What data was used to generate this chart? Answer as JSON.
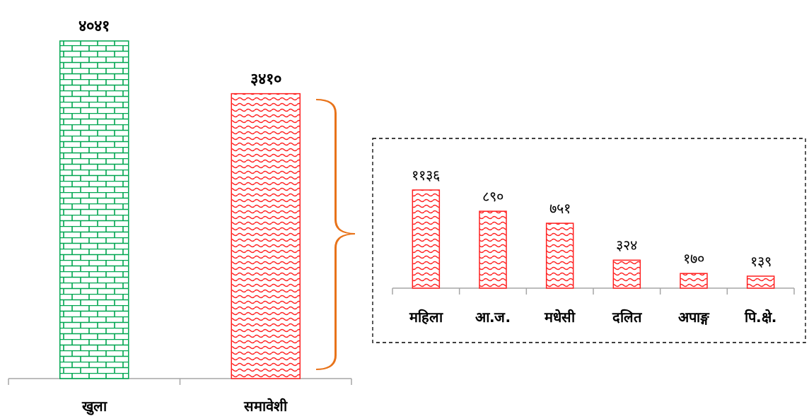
{
  "chart_data": [
    {
      "type": "bar",
      "categories": [
        "खुला",
        "समावेशी"
      ],
      "values": [
        4041,
        3410
      ],
      "value_labels": [
        "४०४१",
        "३४१०"
      ],
      "colors": [
        "#00a650",
        "#ff2020"
      ]
    },
    {
      "type": "bar",
      "categories": [
        "महिला",
        "आ.ज.",
        "मधेसी",
        "दलित",
        "अपाङ्ग",
        "पि.क्षे."
      ],
      "values": [
        1136,
        890,
        751,
        324,
        170,
        139
      ],
      "value_labels": [
        "११३६",
        "८९०",
        "७५१",
        "३२४",
        "१७०",
        "१३९"
      ],
      "color": "#ff2020"
    }
  ]
}
